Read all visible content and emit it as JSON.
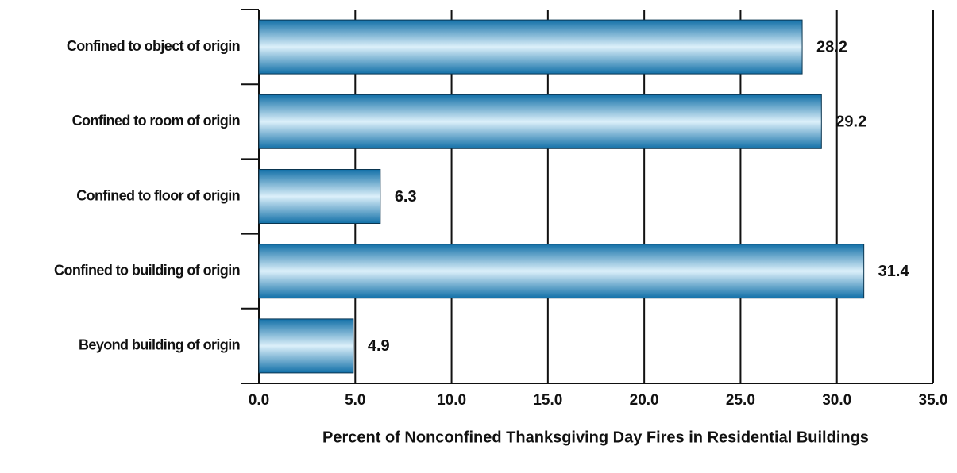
{
  "chart_data": {
    "type": "bar",
    "orientation": "horizontal",
    "categories": [
      "Confined to object of origin",
      "Confined to room of origin",
      "Confined to floor of origin",
      "Confined to building of origin",
      "Beyond building of origin"
    ],
    "values": [
      28.2,
      29.2,
      6.3,
      31.4,
      4.9
    ],
    "color": "#1270a8",
    "xlabel": "Percent of Nonconfined Thanksgiving Day Fires in Residential Buildings",
    "xlim": [
      0,
      35
    ],
    "xticks": [
      {
        "value": 0,
        "label": "0.0"
      },
      {
        "value": 5,
        "label": "5.0"
      },
      {
        "value": 10,
        "label": "10.0"
      },
      {
        "value": 15,
        "label": "15.0"
      },
      {
        "value": 20,
        "label": "20.0"
      },
      {
        "value": 25,
        "label": "25.0"
      },
      {
        "value": 30,
        "label": "30.0"
      },
      {
        "value": 35,
        "label": "35.0"
      }
    ],
    "grid": true
  }
}
